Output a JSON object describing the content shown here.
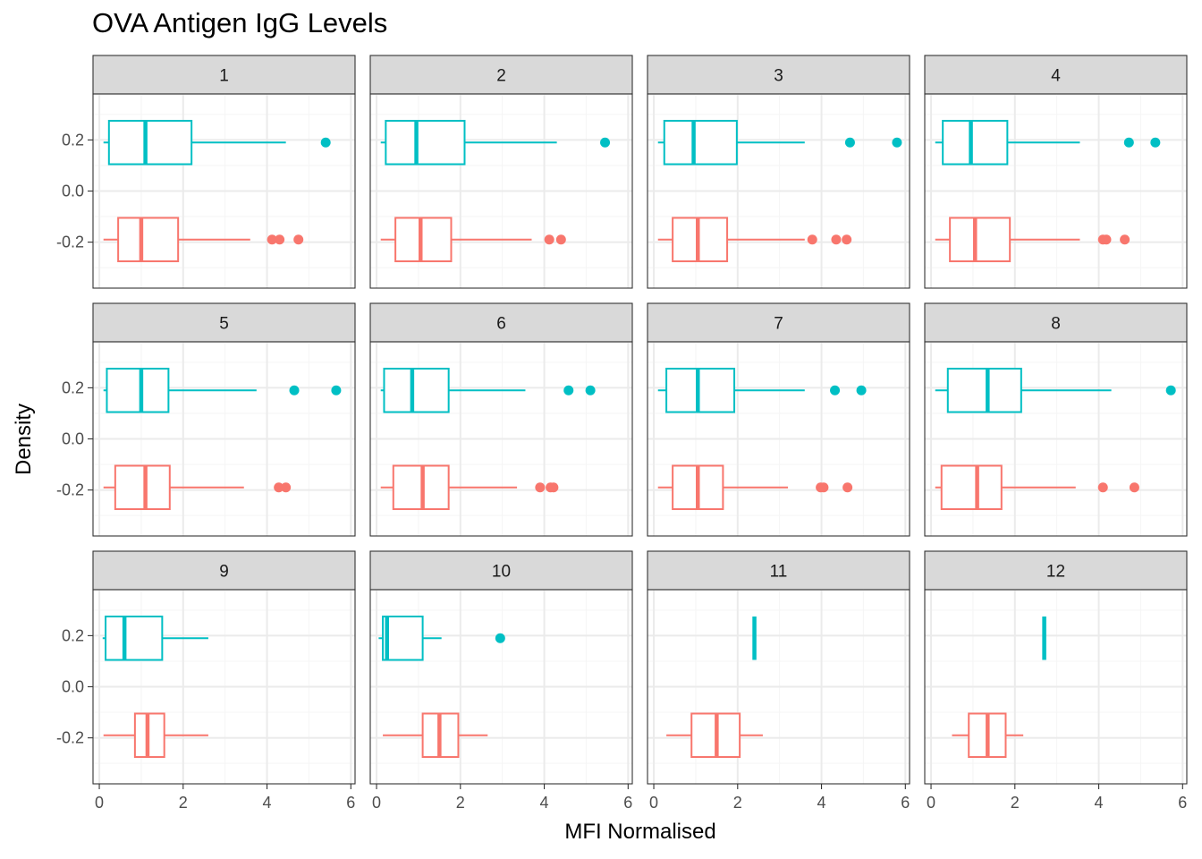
{
  "chart_data": {
    "type": "boxplot",
    "title": "OVA Antigen IgG Levels",
    "xlabel": "MFI Normalised",
    "ylabel": "Density",
    "orientation": "horizontal",
    "facet_layout": "3 rows x 4 columns",
    "xlim": [
      -0.15,
      6.1
    ],
    "ylim": [
      -0.38,
      0.38
    ],
    "x_ticks": [
      0,
      2,
      4,
      6
    ],
    "y_ticks": [
      -0.2,
      0.0,
      0.2
    ],
    "y_tick_labels": [
      "-0.2",
      "0.0",
      "0.2"
    ],
    "grid": true,
    "legend": "none",
    "colors": {
      "upper_series": "#00BFC4",
      "lower_series": "#F8766D",
      "strip_bg": "#D9D9D9",
      "grid_major": "#EBEBEB",
      "grid_minor": "#F5F5F5"
    },
    "panels": [
      {
        "label": "1",
        "upper": {
          "min": 0.1,
          "q1": 0.23,
          "median": 1.1,
          "q3": 2.2,
          "max": 4.45,
          "outliers": [
            5.4
          ]
        },
        "lower": {
          "min": 0.1,
          "q1": 0.45,
          "median": 1.0,
          "q3": 1.88,
          "max": 3.6,
          "outliers": [
            4.12,
            4.3,
            4.75
          ]
        }
      },
      {
        "label": "2",
        "upper": {
          "min": 0.1,
          "q1": 0.22,
          "median": 0.95,
          "q3": 2.1,
          "max": 4.3,
          "outliers": [
            5.45
          ]
        },
        "lower": {
          "min": 0.1,
          "q1": 0.45,
          "median": 1.05,
          "q3": 1.78,
          "max": 3.7,
          "outliers": [
            4.12,
            4.4
          ]
        }
      },
      {
        "label": "3",
        "upper": {
          "min": 0.1,
          "q1": 0.25,
          "median": 0.95,
          "q3": 1.98,
          "max": 3.6,
          "outliers": [
            4.68,
            5.8
          ]
        },
        "lower": {
          "min": 0.1,
          "q1": 0.45,
          "median": 1.05,
          "q3": 1.75,
          "max": 3.6,
          "outliers": [
            3.78,
            4.35,
            4.6
          ]
        }
      },
      {
        "label": "4",
        "upper": {
          "min": 0.1,
          "q1": 0.28,
          "median": 0.95,
          "q3": 1.82,
          "max": 3.55,
          "outliers": [
            4.72,
            5.35
          ]
        },
        "lower": {
          "min": 0.1,
          "q1": 0.45,
          "median": 1.05,
          "q3": 1.88,
          "max": 3.55,
          "outliers": [
            4.1,
            4.18,
            4.62
          ]
        }
      },
      {
        "label": "5",
        "upper": {
          "min": 0.1,
          "q1": 0.18,
          "median": 1.0,
          "q3": 1.65,
          "max": 3.75,
          "outliers": [
            4.65,
            5.65
          ]
        },
        "lower": {
          "min": 0.1,
          "q1": 0.38,
          "median": 1.1,
          "q3": 1.68,
          "max": 3.45,
          "outliers": [
            4.28,
            4.45
          ]
        }
      },
      {
        "label": "6",
        "upper": {
          "min": 0.1,
          "q1": 0.18,
          "median": 0.85,
          "q3": 1.72,
          "max": 3.55,
          "outliers": [
            4.58,
            5.1
          ]
        },
        "lower": {
          "min": 0.1,
          "q1": 0.4,
          "median": 1.1,
          "q3": 1.72,
          "max": 3.35,
          "outliers": [
            3.9,
            4.15,
            4.22
          ]
        }
      },
      {
        "label": "7",
        "upper": {
          "min": 0.1,
          "q1": 0.3,
          "median": 1.05,
          "q3": 1.92,
          "max": 3.6,
          "outliers": [
            4.32,
            4.95
          ]
        },
        "lower": {
          "min": 0.1,
          "q1": 0.45,
          "median": 1.05,
          "q3": 1.65,
          "max": 3.2,
          "outliers": [
            3.98,
            4.05,
            4.62
          ]
        }
      },
      {
        "label": "8",
        "upper": {
          "min": 0.1,
          "q1": 0.4,
          "median": 1.35,
          "q3": 2.15,
          "max": 4.3,
          "outliers": [
            5.72
          ]
        },
        "lower": {
          "min": 0.1,
          "q1": 0.25,
          "median": 1.1,
          "q3": 1.68,
          "max": 3.45,
          "outliers": [
            4.1,
            4.85
          ]
        }
      },
      {
        "label": "9",
        "upper": {
          "min": 0.08,
          "q1": 0.15,
          "median": 0.6,
          "q3": 1.5,
          "max": 2.6,
          "outliers": []
        },
        "lower": {
          "min": 0.1,
          "q1": 0.85,
          "median": 1.15,
          "q3": 1.55,
          "max": 2.6,
          "outliers": []
        }
      },
      {
        "label": "10",
        "upper": {
          "min": 0.05,
          "q1": 0.15,
          "median": 0.25,
          "q3": 1.1,
          "max": 1.55,
          "outliers": [
            2.95
          ]
        },
        "lower": {
          "min": 0.15,
          "q1": 1.1,
          "median": 1.5,
          "q3": 1.95,
          "max": 2.65,
          "outliers": []
        }
      },
      {
        "label": "11",
        "upper": {
          "min": 2.4,
          "q1": 2.4,
          "median": 2.4,
          "q3": 2.4,
          "max": 2.4,
          "outliers": []
        },
        "lower": {
          "min": 0.3,
          "q1": 0.9,
          "median": 1.5,
          "q3": 2.05,
          "max": 2.6,
          "outliers": []
        }
      },
      {
        "label": "12",
        "upper": {
          "min": 2.7,
          "q1": 2.7,
          "median": 2.7,
          "q3": 2.7,
          "max": 2.7,
          "outliers": []
        },
        "lower": {
          "min": 0.5,
          "q1": 0.9,
          "median": 1.35,
          "q3": 1.78,
          "max": 2.2,
          "outliers": []
        }
      }
    ]
  }
}
